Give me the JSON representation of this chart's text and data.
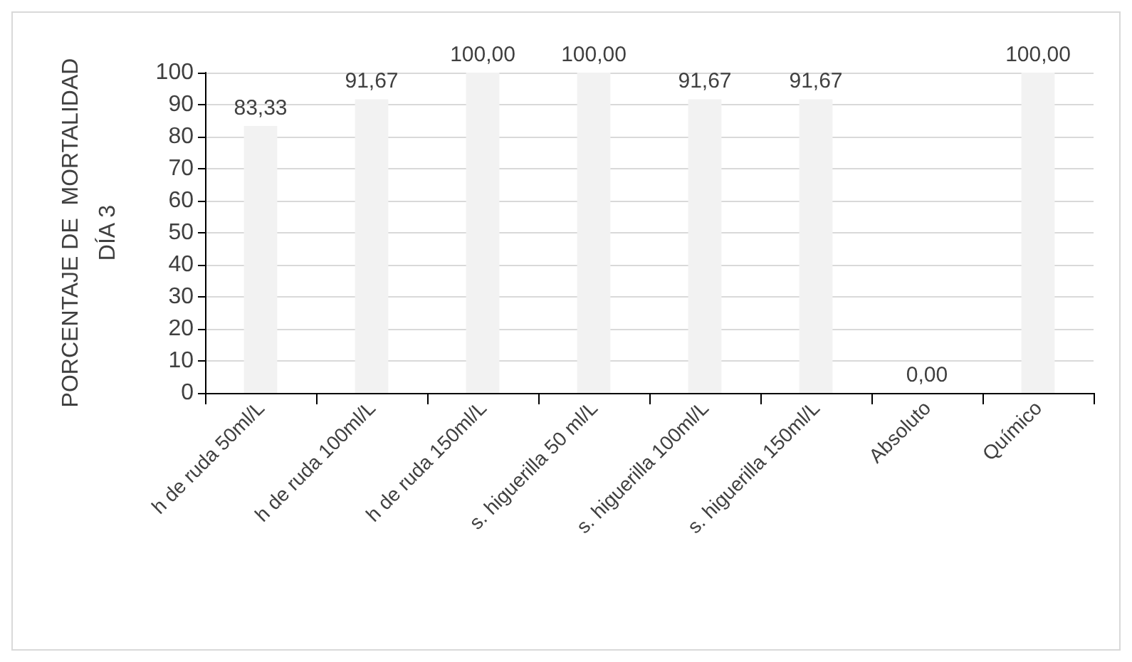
{
  "chart_data": {
    "type": "bar",
    "ylabel": "PORCENTAJE DE  MORTALIDAD\nDÍA 3",
    "categories": [
      "h de ruda 50ml/L",
      "h de ruda 100ml/L",
      "h de ruda 150ml/L",
      "s. higuerilla 50 ml/L",
      "s. higuerilla 100ml/L",
      "s. higuerilla 150ml/L",
      "Absoluto",
      "Químico"
    ],
    "values": [
      83.33,
      91.67,
      100,
      100,
      91.67,
      91.67,
      0,
      100
    ],
    "value_labels": [
      "83,33",
      "91,67",
      "100,00",
      "100,00",
      "91,67",
      "91,67",
      "0,00",
      "100,00"
    ],
    "color": "#f2f2f2",
    "ylim": [
      0,
      100
    ],
    "yticks": [
      0,
      10,
      20,
      30,
      40,
      50,
      60,
      70,
      80,
      90,
      100
    ],
    "grid": "y"
  }
}
